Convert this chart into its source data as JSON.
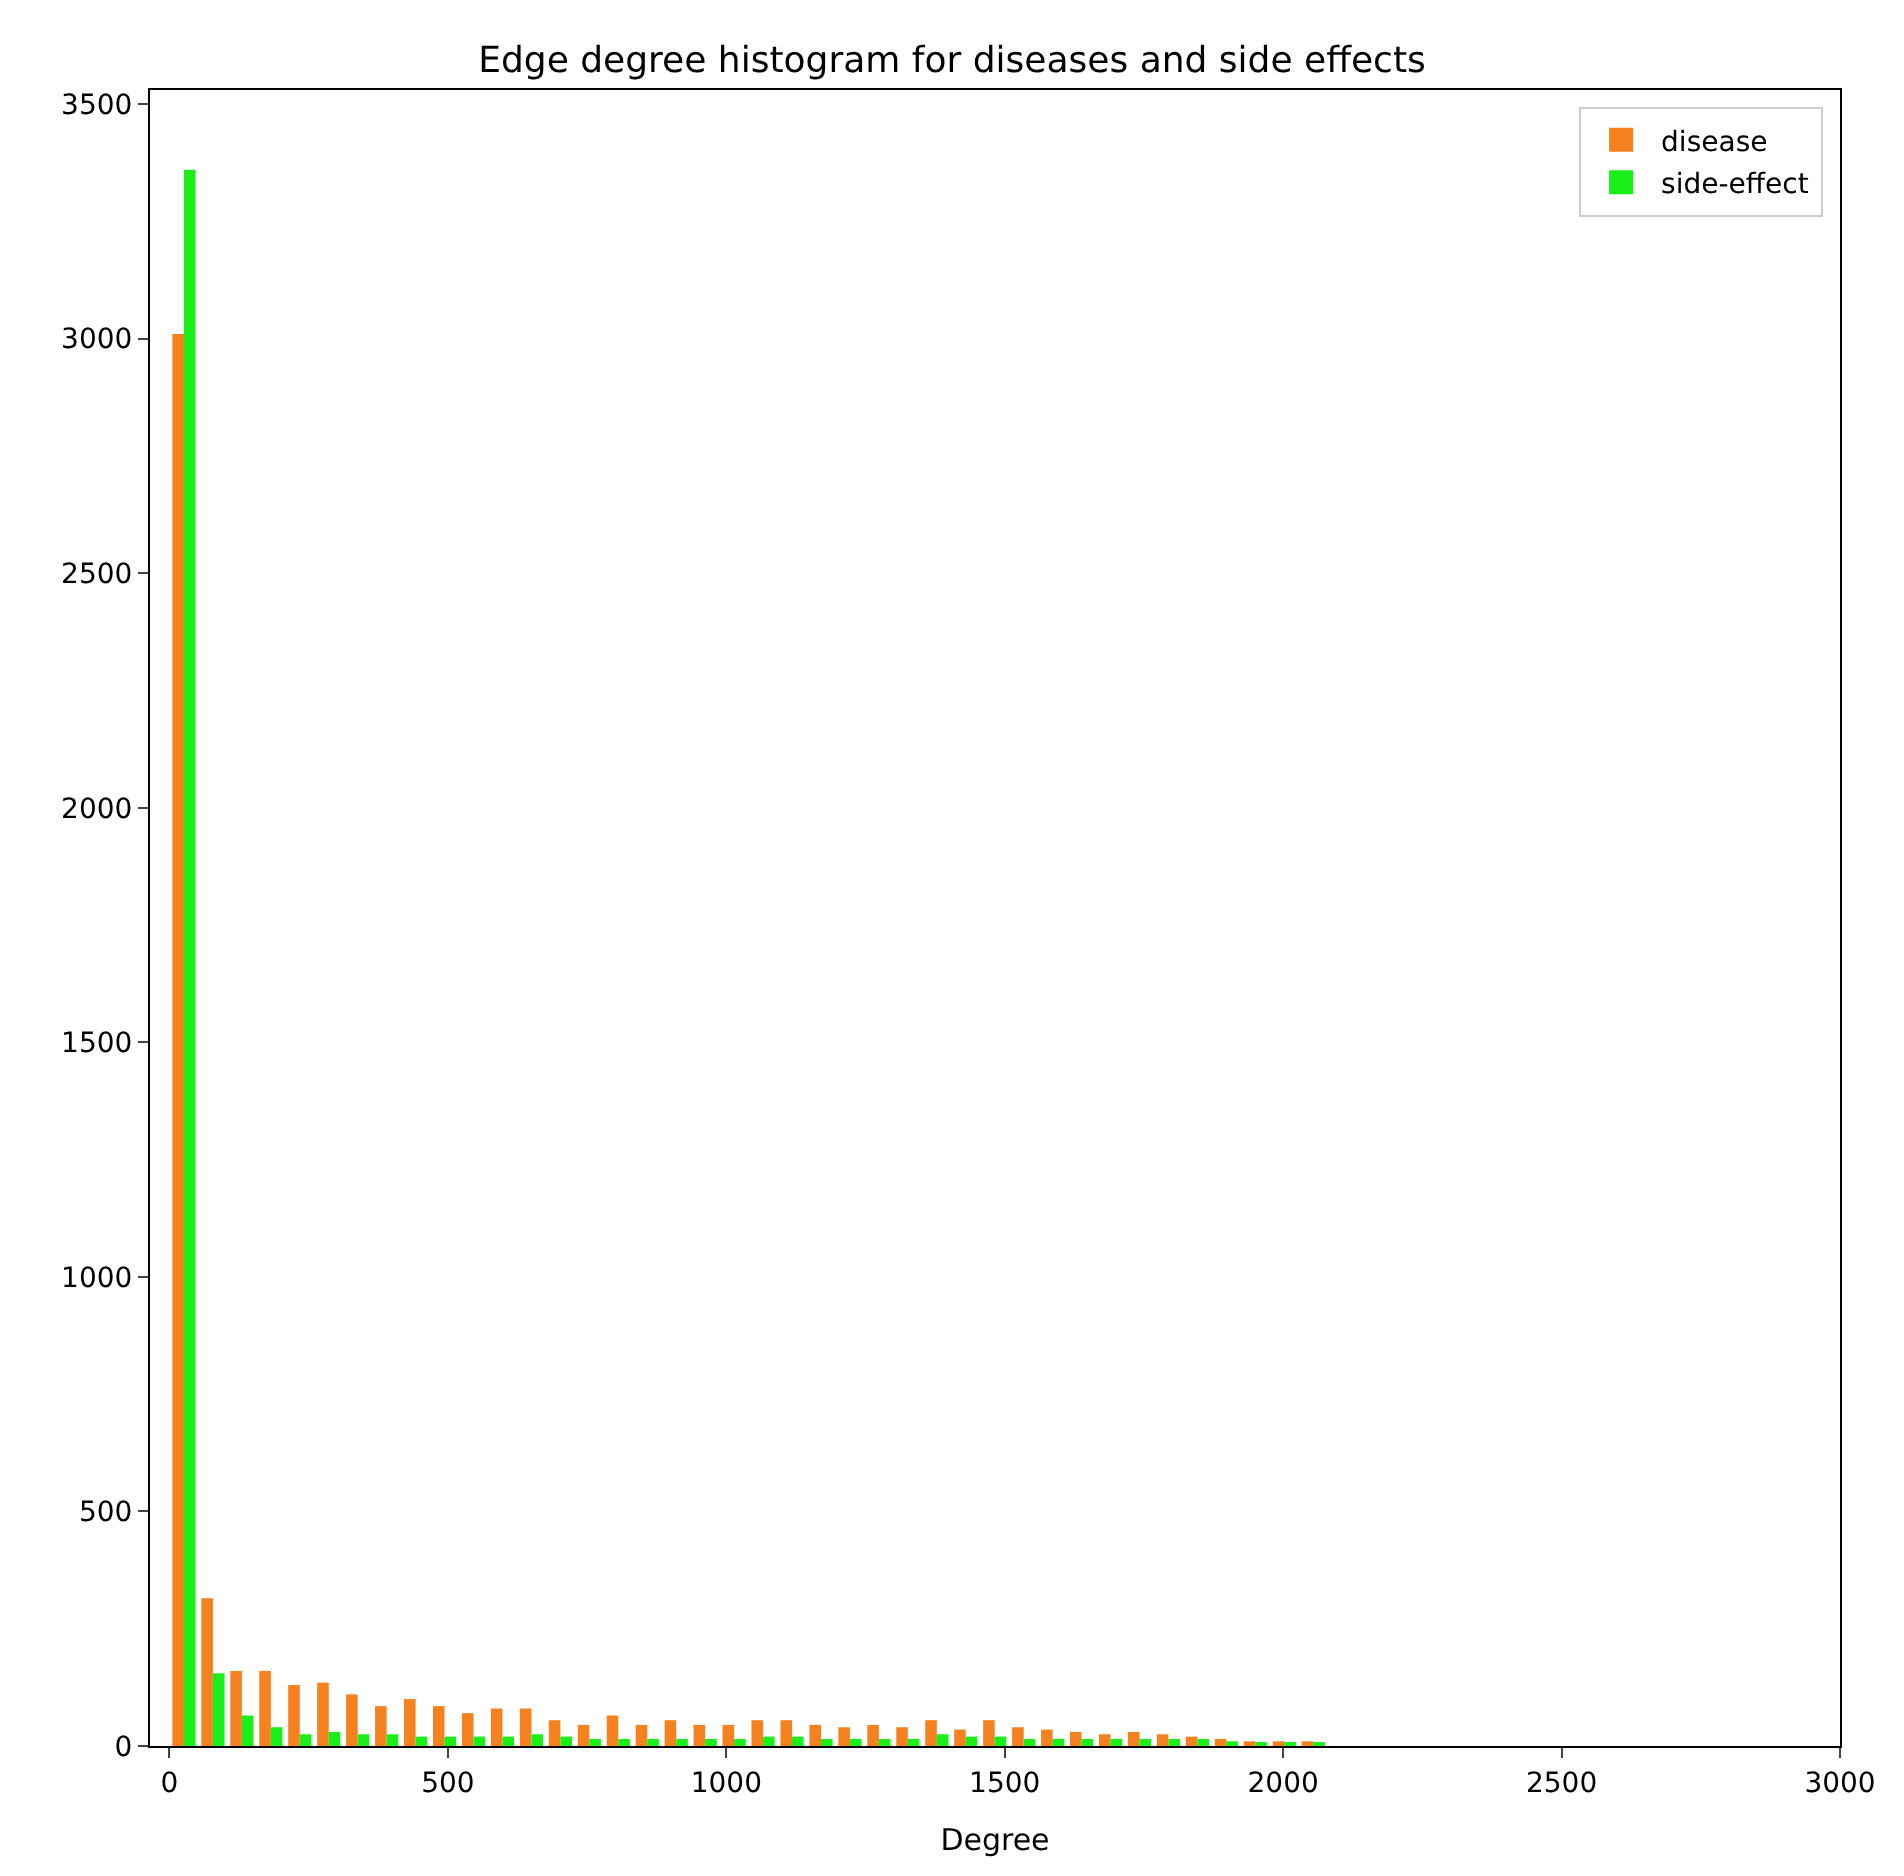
{
  "chart_data": {
    "type": "histogram",
    "title": "Edge degree histogram for diseases and side effects",
    "xlabel": "Degree",
    "bins": [
      0,
      52,
      104,
      156,
      208,
      260,
      312,
      364,
      416,
      468,
      520,
      572,
      624,
      676,
      728,
      780,
      832,
      884,
      936,
      988,
      1040,
      1092,
      1144,
      1196,
      1248,
      1300,
      1352,
      1404,
      1456,
      1508,
      1560,
      1612,
      1664,
      1716,
      1768,
      1820,
      1872,
      1924,
      1976,
      2028,
      2080
    ],
    "series": [
      {
        "name": "disease",
        "color": "#f5821f",
        "values": [
          3010,
          315,
          160,
          160,
          130,
          135,
          110,
          85,
          100,
          85,
          70,
          80,
          80,
          55,
          45,
          65,
          45,
          55,
          45,
          45,
          55,
          55,
          45,
          40,
          45,
          40,
          55,
          35,
          55,
          40,
          35,
          30,
          25,
          30,
          25,
          20,
          15,
          10,
          10,
          10
        ]
      },
      {
        "name": "side-effect",
        "color": "#19f019",
        "values": [
          3360,
          155,
          65,
          40,
          25,
          30,
          25,
          25,
          20,
          20,
          20,
          20,
          25,
          20,
          15,
          15,
          15,
          15,
          15,
          15,
          20,
          20,
          15,
          15,
          15,
          15,
          25,
          20,
          20,
          15,
          15,
          15,
          15,
          15,
          15,
          15,
          10,
          5,
          5,
          5
        ]
      }
    ],
    "xlim": [
      -35,
      3000
    ],
    "xticks": [
      0,
      500,
      1000,
      1500,
      2000,
      2500,
      3000
    ],
    "ylim": [
      0,
      3530
    ],
    "yticks": [
      0,
      500,
      1000,
      1500,
      2000,
      2500,
      3000,
      3500
    ],
    "legend": "top right"
  }
}
